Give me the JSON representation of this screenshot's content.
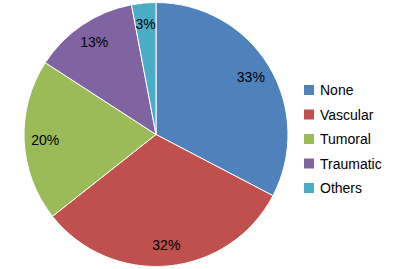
{
  "chart_data": {
    "type": "pie",
    "categories": [
      "None",
      "Vascular",
      "Tumoral",
      "Traumatic",
      "Others"
    ],
    "values": [
      33,
      32,
      20,
      13,
      3
    ],
    "value_labels": [
      "33%",
      "32%",
      "20%",
      "13%",
      "3%"
    ],
    "colors": [
      "#4f81bd",
      "#c0504d",
      "#9bbb59",
      "#8064a2",
      "#4bacc6"
    ],
    "data_labels": true,
    "legend": "right"
  }
}
